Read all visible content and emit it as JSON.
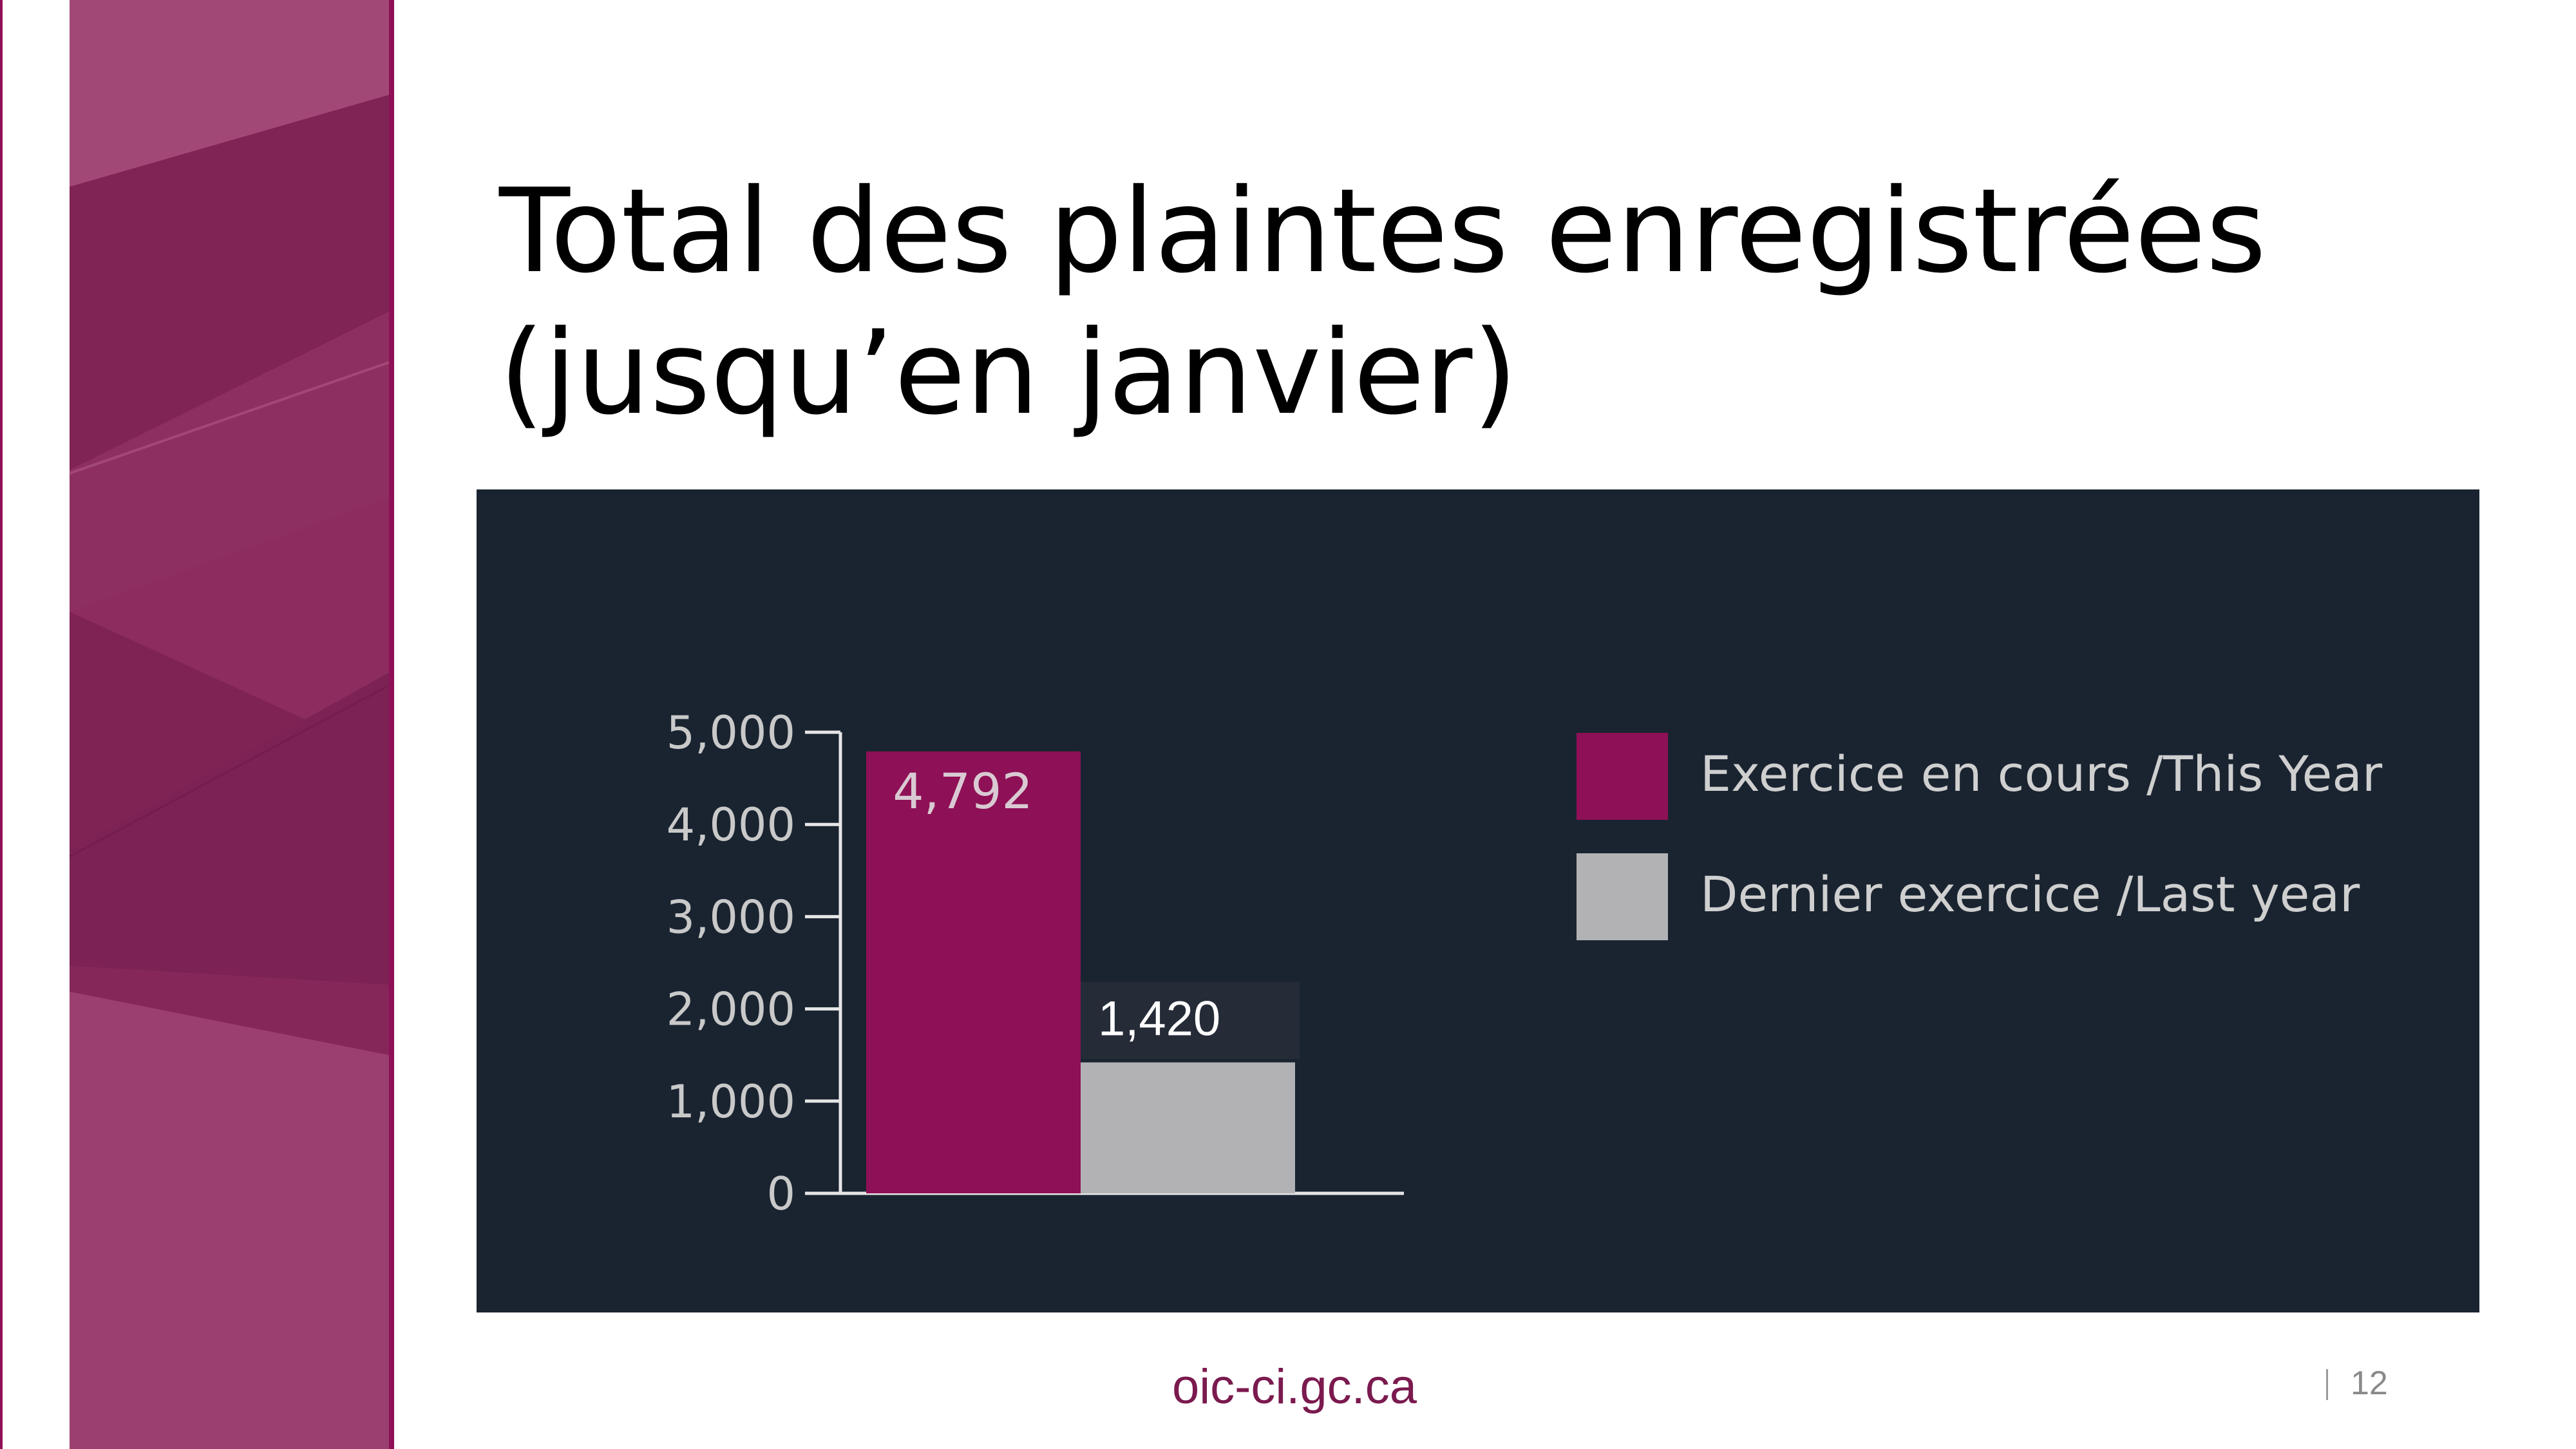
{
  "slide": {
    "title_line1": "Total des plaintes enregistrées",
    "title_line2": "(jusqu’en janvier)",
    "footer_url": "oic-ci.gc.ca",
    "page_number": "12"
  },
  "colors": {
    "brand_magenta": "#8e1056",
    "last_year_gray": "#b2b2b4",
    "panel_bg": "#1a2431",
    "sidebar": "#9b3f70"
  },
  "chart_data": {
    "type": "bar",
    "categories": [
      "Exercice en cours /This Year",
      "Dernier exercice /Last year"
    ],
    "values": [
      4792,
      1420
    ],
    "value_labels": [
      "4,792",
      "1,420"
    ],
    "ylim": [
      0,
      5000
    ],
    "yticks": [
      0,
      1000,
      2000,
      3000,
      4000,
      5000
    ],
    "ytick_labels": [
      "0",
      "1,000",
      "2,000",
      "3,000",
      "4,000",
      "5,000"
    ],
    "legend": [
      {
        "label": "Exercice en cours /This Year",
        "color": "#8e1056"
      },
      {
        "label": "Dernier exercice /Last year",
        "color": "#b2b2b4"
      }
    ],
    "legend_position": "right",
    "grid": false,
    "xlabel": "",
    "ylabel": ""
  }
}
